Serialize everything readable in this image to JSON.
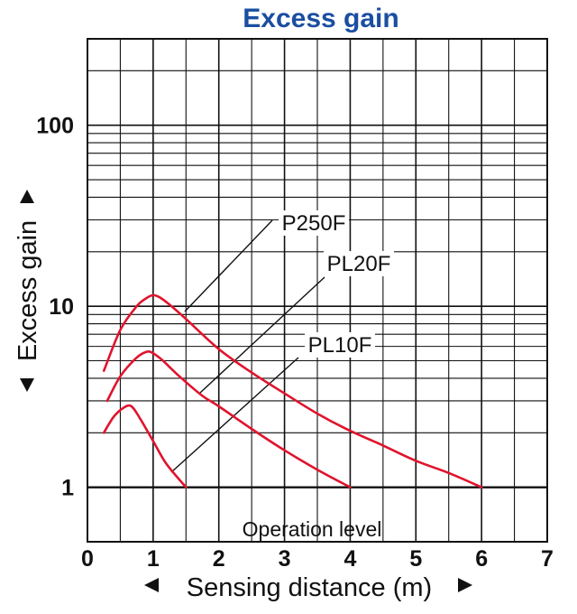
{
  "chart_data": {
    "type": "line",
    "title": "Excess gain",
    "xlabel": "Sensing distance (m)",
    "ylabel": "Excess gain",
    "xlim": [
      0,
      7
    ],
    "ylim": [
      0.5,
      300
    ],
    "yscale": "log",
    "x_ticks": [
      "0",
      "1",
      "2",
      "3",
      "4",
      "5",
      "6",
      "7"
    ],
    "y_ticks": [
      {
        "value": 1,
        "label": "1"
      },
      {
        "value": 10,
        "label": "10"
      },
      {
        "value": 100,
        "label": "100"
      }
    ],
    "grid": true,
    "colors": {
      "title": "#1a4ea1",
      "series": "#e0142d",
      "grid": "#111111"
    },
    "annotation": {
      "text": "Operation level",
      "y": 1
    },
    "series": [
      {
        "name": "P250F",
        "x": [
          0.25,
          0.5,
          0.75,
          0.9,
          1.0,
          1.1,
          1.25,
          1.5,
          2.0,
          2.5,
          3.0,
          3.5,
          4.0,
          4.5,
          5.0,
          5.5,
          6.0
        ],
        "y": [
          4.4,
          7.4,
          10.0,
          11.1,
          11.5,
          11.2,
          10.2,
          8.5,
          5.8,
          4.3,
          3.3,
          2.55,
          2.05,
          1.7,
          1.4,
          1.2,
          1.0
        ]
      },
      {
        "name": "PL20F",
        "x": [
          0.3,
          0.5,
          0.75,
          0.9,
          1.0,
          1.15,
          1.4,
          1.75,
          2.0,
          2.5,
          3.0,
          3.5,
          4.0
        ],
        "y": [
          3.0,
          4.1,
          5.2,
          5.6,
          5.5,
          5.0,
          4.1,
          3.2,
          2.8,
          2.1,
          1.6,
          1.25,
          1.0
        ]
      },
      {
        "name": "PL10F",
        "x": [
          0.25,
          0.4,
          0.55,
          0.67,
          0.8,
          1.0,
          1.2,
          1.5
        ],
        "y": [
          2.0,
          2.45,
          2.75,
          2.8,
          2.4,
          1.8,
          1.35,
          1.0
        ]
      }
    ]
  }
}
